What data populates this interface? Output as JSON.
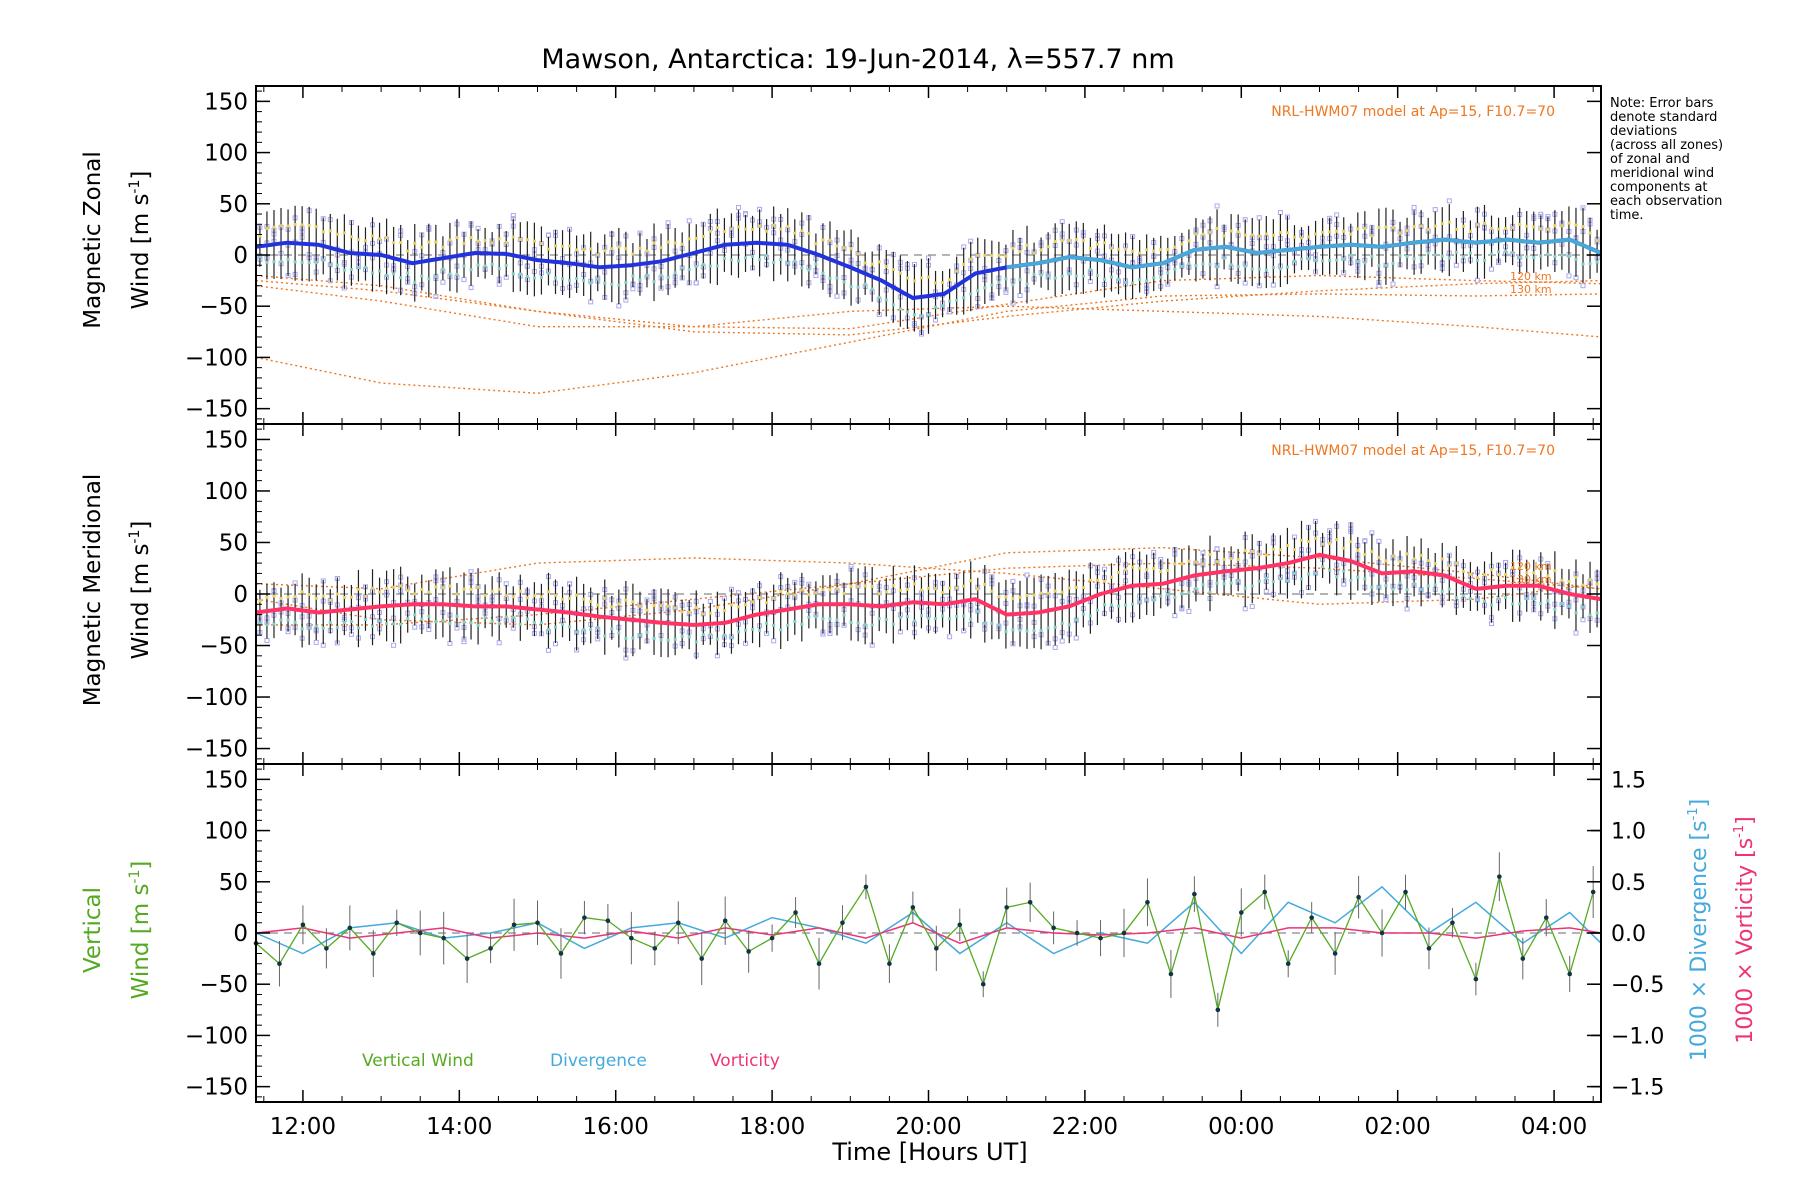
{
  "title": "Mawson, Antarctica: 19-Jun-2014, λ=557.7 nm",
  "note_lines": [
    "Note: Error bars",
    "denote standard",
    "deviations",
    "(across all zones)",
    "of zonal and",
    "meridional wind",
    "components at",
    "each observation",
    "time."
  ],
  "model_label": "NRL-HWM07 model at Ap=15, F10.7=70",
  "colors": {
    "zonal_mean": "#2233dd",
    "zonal_mean_late": "#4aa8d8",
    "meridional_mean": "#ff3366",
    "samples": "#aaaaee",
    "model": "#ee7722",
    "error_bar": "#000000",
    "vertical": "#55aa22",
    "divergence": "#44aadd",
    "vorticity": "#ee3377"
  },
  "x_ticks": [
    {
      "hour": 12,
      "label": "12:00"
    },
    {
      "hour": 14,
      "label": "14:00"
    },
    {
      "hour": 16,
      "label": "16:00"
    },
    {
      "hour": 18,
      "label": "18:00"
    },
    {
      "hour": 20,
      "label": "20:00"
    },
    {
      "hour": 22,
      "label": "22:00"
    },
    {
      "hour": 24,
      "label": "00:00"
    },
    {
      "hour": 26,
      "label": "02:00"
    },
    {
      "hour": 28,
      "label": "04:00"
    }
  ],
  "x_label": {
    "a": "Time ",
    "b": "[",
    "c": "Hours UT",
    "d": "]"
  },
  "panels": {
    "zonal": {
      "ylabel_1": "Magnetic Zonal",
      "ylabel_2": "Wind ",
      "ylabel_unit": "[m s",
      "ylabel_exp": "-1",
      "ylabel_close": "]",
      "yticks": [
        150,
        100,
        50,
        0,
        -50,
        -100,
        -150
      ],
      "model_heights": [
        "120 km",
        "130 km"
      ]
    },
    "meridional": {
      "ylabel_1": "Magnetic Meridional",
      "ylabel_2": "Wind ",
      "ylabel_unit": "[m s",
      "ylabel_exp": "-1",
      "ylabel_close": "]",
      "yticks": [
        150,
        100,
        50,
        0,
        -50,
        -100,
        -150
      ],
      "model_heights": [
        "120 km",
        "130 km"
      ]
    },
    "vertical": {
      "ylabel_1": "Vertical",
      "ylabel_2": "Wind ",
      "ylabel_unit": "[m s",
      "ylabel_exp": "-1",
      "ylabel_close": "]",
      "yticks": [
        150,
        100,
        50,
        0,
        -50,
        -100,
        -150
      ],
      "right_ticks": [
        {
          "value": 1.5,
          "label": "1.5"
        },
        {
          "value": 1.0,
          "label": "1.0"
        },
        {
          "value": 0.5,
          "label": "0.5"
        },
        {
          "value": 0.0,
          "label": "0.0"
        },
        {
          "value": -0.5,
          "label": "−0.5"
        },
        {
          "value": -1.0,
          "label": "−1.0"
        },
        {
          "value": -1.5,
          "label": "−1.5"
        }
      ],
      "right_label_div": "1000 × Divergence ",
      "right_label_vor": "1000 × Vorticity ",
      "right_unit": "[s",
      "right_exp": "-1",
      "right_close": "]"
    }
  },
  "legend": [
    "Vertical Wind",
    "Divergence",
    "Vorticity"
  ],
  "chart_data": [
    {
      "type": "line",
      "panel": "zonal",
      "ylabel": "Magnetic Zonal Wind [m s-1]",
      "xlabel": "Time [Hours UT]",
      "xlim_hours": [
        11.4,
        28.6
      ],
      "ylim": [
        -165,
        165
      ],
      "series": [
        {
          "role": "mean",
          "x": [
            11.4,
            11.8,
            12.2,
            12.6,
            13.0,
            13.4,
            13.8,
            14.2,
            14.6,
            15.0,
            15.4,
            15.8,
            16.2,
            16.6,
            17.0,
            17.4,
            17.8,
            18.2,
            18.6,
            19.0,
            19.4,
            19.8,
            20.2,
            20.6,
            21.0,
            21.4,
            21.8,
            22.2,
            22.6,
            23.0,
            23.4,
            23.8,
            24.2,
            24.6,
            25.0,
            25.4,
            25.8,
            26.2,
            26.6,
            27.0,
            27.4,
            27.8,
            28.2,
            28.6
          ],
          "y": [
            8,
            12,
            10,
            2,
            0,
            -8,
            -3,
            2,
            1,
            -5,
            -8,
            -12,
            -10,
            -6,
            2,
            10,
            12,
            10,
            0,
            -12,
            -25,
            -42,
            -38,
            -18,
            -12,
            -8,
            -2,
            -5,
            -12,
            -8,
            5,
            8,
            2,
            5,
            8,
            10,
            8,
            12,
            15,
            12,
            15,
            12,
            15,
            2
          ]
        },
        {
          "role": "model-120km",
          "x": [
            11.4,
            13.0,
            15.0,
            17.0,
            19.0,
            21.0,
            23.0,
            25.0,
            27.0,
            28.6
          ],
          "y": [
            -20,
            -30,
            -55,
            -70,
            -72,
            -48,
            -25,
            -20,
            -25,
            -28
          ]
        },
        {
          "role": "model-130km",
          "x": [
            11.4,
            13.0,
            15.0,
            17.0,
            19.0,
            21.0,
            23.0,
            25.0,
            27.0,
            28.6
          ],
          "y": [
            -100,
            -125,
            -135,
            -115,
            -85,
            -55,
            -40,
            -38,
            -40,
            -38
          ]
        },
        {
          "role": "model-a",
          "x": [
            11.4,
            13.0,
            15.0,
            17.0,
            19.0,
            21.0,
            23.0,
            25.0,
            27.0,
            28.6
          ],
          "y": [
            -30,
            -45,
            -70,
            -70,
            -55,
            -50,
            -55,
            -60,
            -70,
            -80
          ]
        },
        {
          "role": "model-b",
          "x": [
            11.4,
            13.0,
            15.0,
            17.0,
            19.0,
            21.0,
            23.0,
            25.0,
            27.0,
            28.6
          ],
          "y": [
            -25,
            -35,
            -55,
            -75,
            -78,
            -60,
            -45,
            -35,
            -28,
            -25
          ]
        }
      ]
    },
    {
      "type": "line",
      "panel": "meridional",
      "ylabel": "Magnetic Meridional Wind [m s-1]",
      "xlabel": "Time [Hours UT]",
      "xlim_hours": [
        11.4,
        28.6
      ],
      "ylim": [
        -165,
        165
      ],
      "series": [
        {
          "role": "mean",
          "x": [
            11.4,
            11.8,
            12.2,
            12.6,
            13.0,
            13.4,
            13.8,
            14.2,
            14.6,
            15.0,
            15.4,
            15.8,
            16.2,
            16.6,
            17.0,
            17.4,
            17.8,
            18.2,
            18.6,
            19.0,
            19.4,
            19.8,
            20.2,
            20.6,
            21.0,
            21.4,
            21.8,
            22.2,
            22.6,
            23.0,
            23.4,
            23.8,
            24.2,
            24.6,
            25.0,
            25.4,
            25.8,
            26.2,
            26.6,
            27.0,
            27.4,
            27.8,
            28.2,
            28.6
          ],
          "y": [
            -18,
            -14,
            -18,
            -15,
            -12,
            -10,
            -10,
            -12,
            -12,
            -15,
            -18,
            -22,
            -25,
            -28,
            -30,
            -28,
            -20,
            -15,
            -10,
            -10,
            -12,
            -8,
            -10,
            -5,
            -20,
            -18,
            -12,
            0,
            8,
            10,
            18,
            22,
            25,
            30,
            38,
            32,
            20,
            22,
            18,
            5,
            8,
            8,
            0,
            -5
          ]
        },
        {
          "role": "model-120km",
          "x": [
            11.4,
            13.0,
            15.0,
            17.0,
            19.0,
            21.0,
            23.0,
            25.0,
            27.0,
            28.6
          ],
          "y": [
            -5,
            -25,
            -30,
            -15,
            10,
            40,
            45,
            35,
            20,
            5
          ]
        },
        {
          "role": "model-130km",
          "x": [
            11.4,
            13.0,
            15.0,
            17.0,
            19.0,
            21.0,
            23.0,
            25.0,
            27.0,
            28.6
          ],
          "y": [
            10,
            5,
            30,
            35,
            30,
            20,
            5,
            -10,
            -5,
            10
          ]
        },
        {
          "role": "model-a",
          "x": [
            11.4,
            13.0,
            15.0,
            17.0,
            19.0,
            21.0,
            23.0,
            25.0,
            27.0,
            28.6
          ],
          "y": [
            -30,
            -30,
            -20,
            -5,
            10,
            25,
            30,
            25,
            15,
            5
          ]
        }
      ]
    },
    {
      "type": "line",
      "panel": "vertical",
      "ylabel": "Vertical Wind [m s-1]",
      "y2label": "1000 × Divergence [s-1] / 1000 × Vorticity [s-1]",
      "xlabel": "Time [Hours UT]",
      "xlim_hours": [
        11.4,
        28.6
      ],
      "ylim": [
        -165,
        165
      ],
      "y2lim": [
        -1.65,
        1.65
      ],
      "series": [
        {
          "name": "Vertical Wind",
          "axis": "left",
          "x": [
            11.4,
            11.7,
            12.0,
            12.3,
            12.6,
            12.9,
            13.2,
            13.5,
            13.8,
            14.1,
            14.4,
            14.7,
            15.0,
            15.3,
            15.6,
            15.9,
            16.2,
            16.5,
            16.8,
            17.1,
            17.4,
            17.7,
            18.0,
            18.3,
            18.6,
            18.9,
            19.2,
            19.5,
            19.8,
            20.1,
            20.4,
            20.7,
            21.0,
            21.3,
            21.6,
            21.9,
            22.2,
            22.5,
            22.8,
            23.1,
            23.4,
            23.7,
            24.0,
            24.3,
            24.6,
            24.9,
            25.2,
            25.5,
            25.8,
            26.1,
            26.4,
            26.7,
            27.0,
            27.3,
            27.6,
            27.9,
            28.2,
            28.5
          ],
          "y": [
            -10,
            -30,
            8,
            -15,
            5,
            -20,
            10,
            0,
            -5,
            -25,
            -15,
            8,
            10,
            -20,
            15,
            12,
            -5,
            -15,
            10,
            -25,
            12,
            -18,
            -5,
            20,
            -30,
            10,
            45,
            -30,
            25,
            -15,
            8,
            -50,
            25,
            30,
            5,
            0,
            -5,
            0,
            30,
            -40,
            38,
            -75,
            20,
            40,
            -30,
            15,
            -20,
            35,
            0,
            40,
            -15,
            10,
            -45,
            55,
            -25,
            15,
            -40,
            40
          ]
        },
        {
          "name": "Divergence",
          "axis": "right",
          "x": [
            11.4,
            12.0,
            12.6,
            13.2,
            13.8,
            14.4,
            15.0,
            15.6,
            16.2,
            16.8,
            17.4,
            18.0,
            18.6,
            19.2,
            19.8,
            20.4,
            21.0,
            21.6,
            22.2,
            22.8,
            23.4,
            24.0,
            24.6,
            25.2,
            25.8,
            26.4,
            27.0,
            27.6,
            28.2,
            28.6
          ],
          "y": [
            0.0,
            -0.2,
            0.05,
            0.1,
            -0.05,
            0.0,
            0.1,
            -0.15,
            0.05,
            0.1,
            -0.05,
            0.15,
            0.05,
            -0.1,
            0.2,
            -0.2,
            0.1,
            -0.2,
            0.0,
            -0.1,
            0.3,
            -0.2,
            0.3,
            0.1,
            0.45,
            0.0,
            0.3,
            -0.1,
            0.2,
            -0.1
          ]
        },
        {
          "name": "Vorticity",
          "axis": "right",
          "x": [
            11.4,
            12.0,
            12.6,
            13.2,
            13.8,
            14.4,
            15.0,
            15.6,
            16.2,
            16.8,
            17.4,
            18.0,
            18.6,
            19.2,
            19.8,
            20.4,
            21.0,
            21.6,
            22.2,
            22.8,
            23.4,
            24.0,
            24.6,
            25.2,
            25.8,
            26.4,
            27.0,
            27.6,
            28.2,
            28.6
          ],
          "y": [
            0.0,
            0.05,
            -0.05,
            0.0,
            0.05,
            -0.05,
            0.0,
            -0.05,
            0.02,
            -0.05,
            0.05,
            -0.02,
            0.05,
            -0.05,
            0.1,
            -0.1,
            0.05,
            0.0,
            -0.02,
            0.0,
            0.05,
            -0.05,
            0.05,
            0.05,
            0.0,
            0.0,
            -0.05,
            0.02,
            0.05,
            0.0
          ]
        }
      ]
    }
  ]
}
